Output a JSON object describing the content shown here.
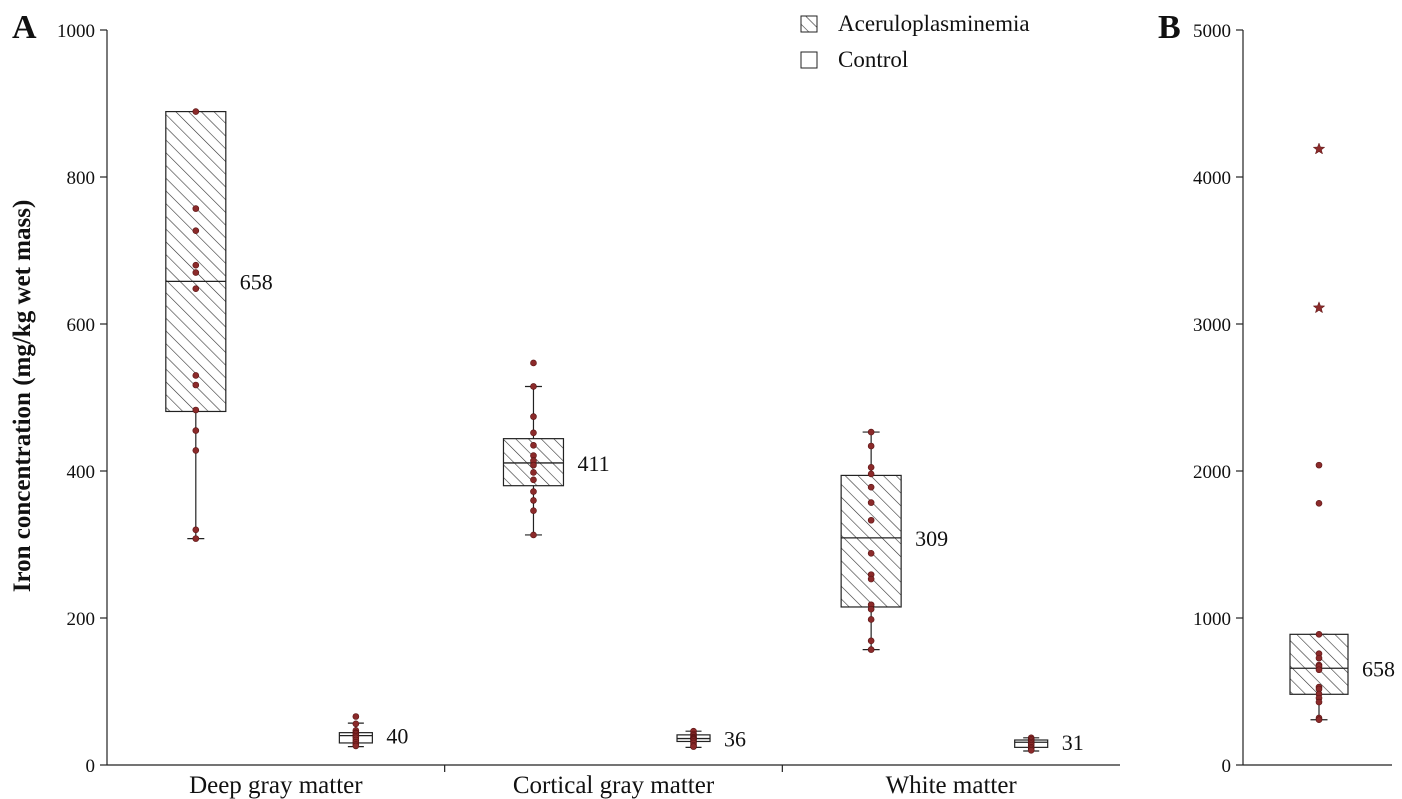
{
  "chart_data": [
    {
      "panel": "A",
      "type": "box",
      "ylabel": "Iron concentration (mg/kg wet mass)",
      "ylim": [
        0,
        1000
      ],
      "yticks": [
        0,
        200,
        400,
        600,
        800,
        1000
      ],
      "categories": [
        "Deep gray matter",
        "Cortical gray matter",
        "White matter"
      ],
      "legend": {
        "placement": "top-center",
        "entries": [
          {
            "label": "Aceruloplasminemia",
            "pattern": "hatched"
          },
          {
            "label": "Control",
            "pattern": "open"
          }
        ]
      },
      "boxes": [
        {
          "category": "Deep gray matter",
          "series": "Aceruloplasminemia",
          "whisker_low": 308,
          "q1": 481,
          "median": 658,
          "q3": 889,
          "whisker_high": 889,
          "median_label": "658",
          "points": [
            889,
            757,
            727,
            680,
            670,
            648,
            530,
            517,
            483,
            455,
            428,
            320,
            308
          ]
        },
        {
          "category": "Deep gray matter",
          "series": "Control",
          "whisker_low": 25,
          "q1": 30,
          "median": 40,
          "q3": 44,
          "whisker_high": 57,
          "median_label": "40",
          "points": [
            66,
            56,
            47,
            44,
            43,
            41,
            39,
            37,
            34,
            31,
            28,
            26
          ]
        },
        {
          "category": "Cortical gray matter",
          "series": "Aceruloplasminemia",
          "whisker_low": 313,
          "q1": 380,
          "median": 411,
          "q3": 444,
          "whisker_high": 515,
          "median_label": "411",
          "points": [
            547,
            515,
            474,
            452,
            435,
            421,
            414,
            408,
            398,
            388,
            372,
            360,
            346,
            313
          ]
        },
        {
          "category": "Cortical gray matter",
          "series": "Control",
          "whisker_low": 24,
          "q1": 32,
          "median": 36,
          "q3": 41,
          "whisker_high": 46,
          "median_label": "36",
          "points": [
            46,
            42,
            40,
            38,
            37,
            36,
            35,
            34,
            32,
            30,
            27,
            25
          ]
        },
        {
          "category": "White matter",
          "series": "Aceruloplasminemia",
          "whisker_low": 157,
          "q1": 215,
          "median": 309,
          "q3": 394,
          "whisker_high": 453,
          "median_label": "309",
          "points": [
            453,
            434,
            405,
            396,
            378,
            357,
            333,
            288,
            259,
            253,
            218,
            212,
            198,
            169,
            157
          ]
        },
        {
          "category": "White matter",
          "series": "Control",
          "whisker_low": 19,
          "q1": 24,
          "median": 31,
          "q3": 34,
          "whisker_high": 37,
          "median_label": "31",
          "points": [
            37,
            35,
            33,
            31,
            29,
            27,
            24,
            22,
            20
          ]
        }
      ]
    },
    {
      "panel": "B",
      "type": "box",
      "ylim": [
        0,
        5000
      ],
      "yticks": [
        0,
        1000,
        2000,
        3000,
        4000,
        5000
      ],
      "boxes": [
        {
          "series": "Aceruloplasminemia",
          "whisker_low": 308,
          "q1": 481,
          "median": 658,
          "q3": 889,
          "whisker_high": 889,
          "median_label": "658",
          "points": [
            889,
            757,
            727,
            680,
            670,
            648,
            530,
            517,
            483,
            455,
            428,
            320,
            308,
            1780,
            2040
          ],
          "extreme_points": [
            3110,
            4190
          ]
        }
      ]
    }
  ],
  "colors": {
    "point": "#8b2a2a",
    "stroke": "#222222"
  }
}
